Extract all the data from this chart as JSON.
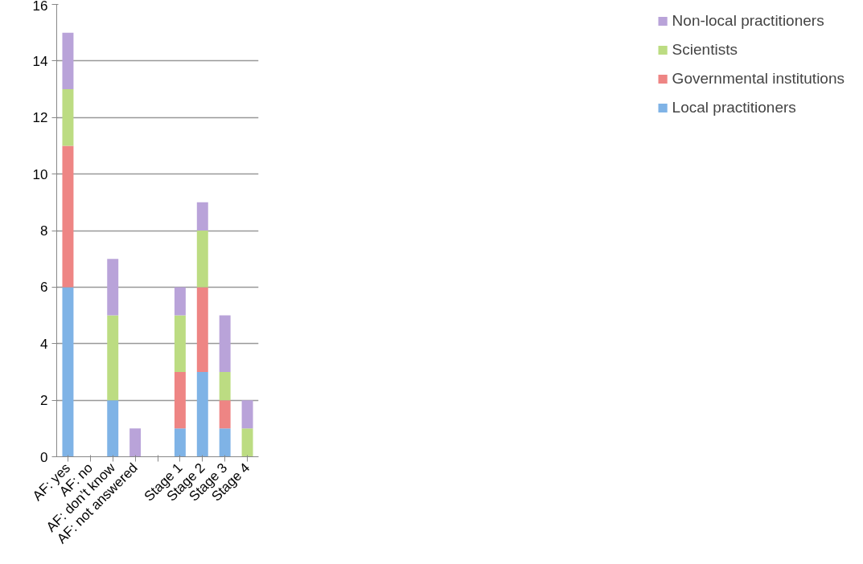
{
  "chart_data": {
    "type": "bar",
    "stacked": true,
    "categories": [
      "AF: yes",
      "AF: no",
      "AF: don’t know",
      "AF: not answered",
      null,
      "Stage 1",
      "Stage 2",
      "Stage 3",
      "Stage 4"
    ],
    "series": [
      {
        "name": "Local practitioners",
        "color": "#7fb3e6",
        "values": [
          6,
          0,
          2,
          0,
          0,
          1,
          3,
          1,
          0
        ]
      },
      {
        "name": "Governmental institutions",
        "color": "#ee8584",
        "values": [
          5,
          0,
          0,
          0,
          0,
          2,
          3,
          1,
          0
        ]
      },
      {
        "name": "Scientists",
        "color": "#bcdc82",
        "values": [
          2,
          0,
          3,
          0,
          0,
          2,
          2,
          1,
          1
        ]
      },
      {
        "name": "Non-local practitioners",
        "color": "#b9a3d9",
        "values": [
          2,
          0,
          2,
          1,
          0,
          1,
          1,
          2,
          1
        ]
      }
    ],
    "ylim": [
      0,
      16
    ],
    "yticks": [
      0,
      2,
      4,
      6,
      8,
      10,
      12,
      14,
      16
    ],
    "grid": "y",
    "legend": "right"
  }
}
